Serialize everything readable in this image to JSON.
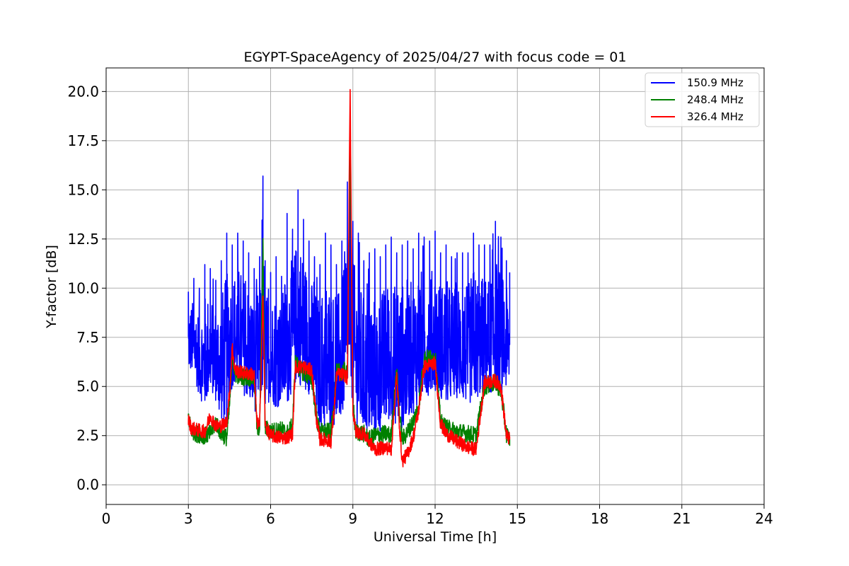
{
  "chart_data": {
    "type": "line",
    "title": "EGYPT-SpaceAgency of 2025/04/27 with focus code = 01",
    "xlabel": "Universal Time [h]",
    "ylabel": "Y-factor [dB]",
    "xlim": [
      0,
      24
    ],
    "ylim": [
      -1.0,
      21.2
    ],
    "xticks": [
      0,
      3,
      6,
      9,
      12,
      15,
      18,
      21,
      24
    ],
    "xtick_labels": [
      "0",
      "3",
      "6",
      "9",
      "12",
      "15",
      "18",
      "21",
      "24"
    ],
    "yticks": [
      0.0,
      2.5,
      5.0,
      7.5,
      10.0,
      12.5,
      15.0,
      17.5,
      20.0
    ],
    "ytick_labels": [
      "0.0",
      "2.5",
      "5.0",
      "7.5",
      "10.0",
      "12.5",
      "15.0",
      "17.5",
      "20.0"
    ],
    "grid": true,
    "legend_position": "top-right",
    "series": [
      {
        "name": "150.9 MHz",
        "color": "#0000ff",
        "x": [
          3.0,
          3.2,
          3.4,
          3.6,
          3.8,
          4.0,
          4.2,
          4.4,
          4.6,
          4.8,
          5.0,
          5.2,
          5.4,
          5.6,
          5.72,
          5.8,
          6.0,
          6.2,
          6.4,
          6.6,
          6.8,
          7.0,
          7.2,
          7.4,
          7.6,
          7.8,
          8.0,
          8.2,
          8.4,
          8.6,
          8.8,
          8.9,
          9.0,
          9.2,
          9.4,
          9.6,
          9.8,
          10.0,
          10.2,
          10.4,
          10.6,
          10.8,
          11.0,
          11.2,
          11.4,
          11.6,
          11.8,
          12.0,
          12.2,
          12.4,
          12.6,
          12.8,
          13.0,
          13.2,
          13.4,
          13.6,
          13.8,
          14.0,
          14.2,
          14.4,
          14.6,
          14.72
        ],
        "y_min": [
          5.8,
          5.5,
          4.5,
          3.8,
          4.8,
          4.2,
          3.2,
          3.0,
          5.0,
          5.0,
          4.6,
          4.2,
          3.6,
          4.2,
          4.5,
          3.8,
          4.4,
          3.8,
          4.2,
          4.0,
          4.8,
          5.2,
          4.8,
          4.6,
          3.6,
          3.0,
          2.5,
          3.0,
          3.0,
          3.2,
          4.5,
          6.0,
          3.6,
          2.8,
          2.6,
          2.3,
          2.0,
          2.6,
          3.0,
          3.2,
          3.0,
          2.8,
          3.4,
          3.6,
          4.2,
          4.4,
          4.6,
          4.8,
          4.4,
          4.0,
          4.2,
          4.4,
          4.2,
          4.0,
          4.2,
          4.4,
          4.6,
          4.6,
          4.8,
          4.6,
          4.8,
          5.0
        ],
        "y_max": [
          9.8,
          10.5,
          10.0,
          11.2,
          11.0,
          10.4,
          11.4,
          12.8,
          12.2,
          12.8,
          12.4,
          11.8,
          11.0,
          11.6,
          15.7,
          11.4,
          10.8,
          11.6,
          10.6,
          13.8,
          13.0,
          15.0,
          13.5,
          12.4,
          11.6,
          11.2,
          12.8,
          12.2,
          11.2,
          12.4,
          15.4,
          16.2,
          13.4,
          12.8,
          11.4,
          11.8,
          12.0,
          11.6,
          12.2,
          12.6,
          11.8,
          12.2,
          12.4,
          12.0,
          12.8,
          12.6,
          12.4,
          12.9,
          11.8,
          12.2,
          11.6,
          11.8,
          11.8,
          11.8,
          12.8,
          12.2,
          12.2,
          12.2,
          13.4,
          12.6,
          11.4,
          10.8
        ]
      },
      {
        "name": "248.4 MHz",
        "color": "#008000",
        "x": [
          3.0,
          3.1,
          3.3,
          3.6,
          3.8,
          4.0,
          4.2,
          4.4,
          4.5,
          4.6,
          4.7,
          5.0,
          5.4,
          5.5,
          5.6,
          5.72,
          5.8,
          6.0,
          6.4,
          6.6,
          6.8,
          6.9,
          7.2,
          7.5,
          7.7,
          7.8,
          8.0,
          8.2,
          8.3,
          8.4,
          8.7,
          8.8,
          8.9,
          9.0,
          9.1,
          9.4,
          9.6,
          9.8,
          10.2,
          10.4,
          10.6,
          10.7,
          10.8,
          11.0,
          11.2,
          11.4,
          11.6,
          12.0,
          12.2,
          12.4,
          12.8,
          13.2,
          13.5,
          13.6,
          13.8,
          14.2,
          14.4,
          14.6,
          14.72
        ],
        "y": [
          3.5,
          2.8,
          2.6,
          2.5,
          2.6,
          3.2,
          2.6,
          2.4,
          4.0,
          6.6,
          5.6,
          5.5,
          5.4,
          3.0,
          2.8,
          12.2,
          2.9,
          2.7,
          2.8,
          2.6,
          3.0,
          6.2,
          5.7,
          5.4,
          3.2,
          2.7,
          2.7,
          2.7,
          3.8,
          5.7,
          5.8,
          5.6,
          17.2,
          4.2,
          2.7,
          2.6,
          2.3,
          2.5,
          2.6,
          2.5,
          5.8,
          3.6,
          2.3,
          2.7,
          3.2,
          4.0,
          6.4,
          6.5,
          3.2,
          2.9,
          2.7,
          2.6,
          2.5,
          3.4,
          5.0,
          5.2,
          4.8,
          2.6,
          2.3
        ],
        "y_spread": 0.45
      },
      {
        "name": "326.4 MHz",
        "color": "#ff0000",
        "x": [
          3.0,
          3.1,
          3.3,
          3.6,
          3.8,
          4.0,
          4.2,
          4.4,
          4.5,
          4.6,
          4.7,
          5.0,
          5.4,
          5.5,
          5.6,
          5.72,
          5.8,
          6.0,
          6.4,
          6.6,
          6.8,
          6.9,
          7.2,
          7.5,
          7.7,
          7.8,
          8.0,
          8.2,
          8.3,
          8.4,
          8.7,
          8.8,
          8.9,
          9.0,
          9.1,
          9.4,
          9.6,
          9.8,
          10.2,
          10.4,
          10.6,
          10.7,
          10.8,
          11.0,
          11.2,
          11.4,
          11.6,
          12.0,
          12.2,
          12.4,
          12.8,
          13.2,
          13.5,
          13.6,
          13.8,
          14.2,
          14.4,
          14.6,
          14.72
        ],
        "y": [
          3.3,
          2.9,
          2.8,
          2.7,
          3.5,
          3.0,
          3.0,
          3.2,
          4.6,
          7.0,
          5.8,
          5.7,
          5.6,
          3.2,
          3.0,
          9.6,
          3.0,
          2.5,
          2.4,
          2.4,
          2.6,
          6.0,
          6.0,
          5.8,
          3.0,
          2.3,
          2.3,
          2.2,
          3.5,
          5.6,
          5.6,
          5.4,
          20.1,
          3.8,
          2.7,
          2.6,
          2.2,
          1.8,
          1.9,
          1.8,
          5.6,
          3.0,
          1.2,
          1.6,
          2.4,
          3.8,
          6.0,
          6.2,
          3.1,
          2.6,
          2.2,
          1.9,
          1.8,
          3.0,
          5.2,
          5.3,
          5.0,
          2.5,
          2.3
        ],
        "y_spread": 0.35
      }
    ]
  }
}
